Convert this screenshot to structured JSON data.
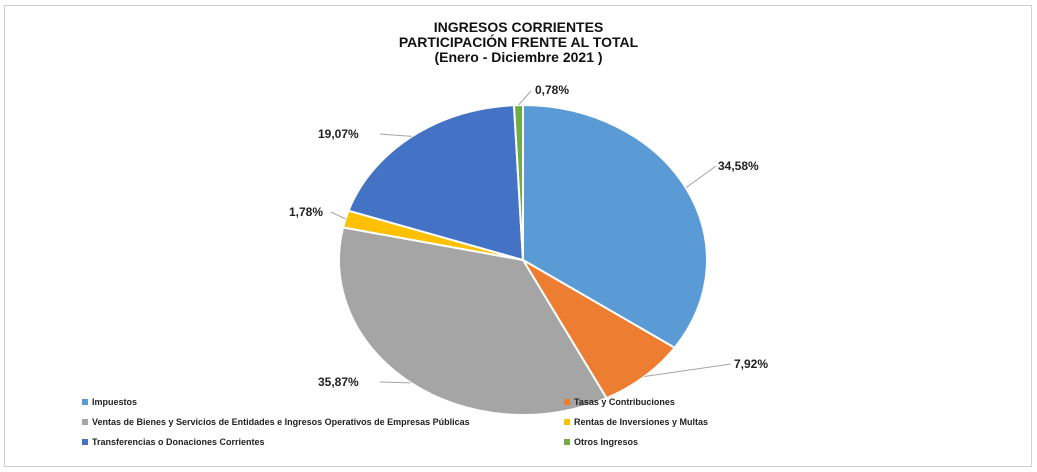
{
  "chart_data": {
    "type": "pie",
    "title_lines": [
      "INGRESOS CORRIENTES",
      "PARTICIPACIÓN  FRENTE AL TOTAL",
      "(Enero - Diciembre 2021 )"
    ],
    "legend_placement": "bottom",
    "slices": [
      {
        "name": "Impuestos",
        "value": 34.58,
        "label": "34,58%",
        "color": "#5B9BD5"
      },
      {
        "name": "Tasas y Contribuciones",
        "value": 7.92,
        "label": "7,92%",
        "color": "#ED7D31"
      },
      {
        "name": "Ventas de Bienes y Servicios de Entidades e Ingresos Operativos de Empresas Públicas",
        "value": 35.87,
        "label": "35,87%",
        "color": "#A5A5A5"
      },
      {
        "name": "Rentas de Inversiones y Multas",
        "value": 1.78,
        "label": "1,78%",
        "color": "#FFC000"
      },
      {
        "name": "Transferencias o Donaciones Corrientes",
        "value": 19.07,
        "label": "19,07%",
        "color": "#4472C4"
      },
      {
        "name": "Otros Ingresos",
        "value": 0.78,
        "label": "0,78%",
        "color": "#70AD47"
      }
    ]
  }
}
